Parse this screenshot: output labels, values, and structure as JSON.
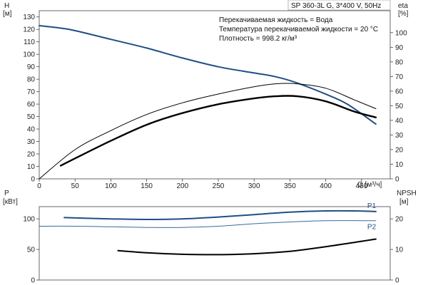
{
  "header": {
    "model": "SP 360-3L G, 3*400 V, 50Hz"
  },
  "notes": [
    "Перекачиваемая жидкость = Вода",
    "Температура перекачиваемой жидкости = 20 °C",
    "Плотность = 998.2 кг/м³"
  ],
  "colors": {
    "blue": "#1f4f86",
    "blue_light": "#3a6a9a",
    "black": "#000000",
    "axis": "#444444"
  },
  "chart_data": [
    {
      "type": "line",
      "name": "top-panel",
      "xlabel": "Q [м³/ч]",
      "ylabel_left": [
        "H",
        "[м]"
      ],
      "ylabel_right": [
        "eta",
        "[%]"
      ],
      "xlim": [
        0,
        490
      ],
      "ylim_left": [
        0,
        135
      ],
      "ylim_right": [
        0,
        115
      ],
      "x_ticks": [
        0,
        50,
        100,
        150,
        200,
        250,
        300,
        350,
        400,
        450
      ],
      "x_tick_labels": [
        "0",
        "50",
        "100",
        "150",
        "200",
        "250",
        "300",
        "350",
        "400",
        "450"
      ],
      "y_ticks_left": [
        0,
        10,
        20,
        30,
        40,
        50,
        60,
        70,
        80,
        90,
        100,
        110,
        120,
        130
      ],
      "y_tick_labels_left": [
        "0",
        "10",
        "20",
        "30",
        "40",
        "50",
        "60",
        "70",
        "80",
        "90",
        "100",
        "110",
        "120",
        "130"
      ],
      "y_ticks_right": [
        0,
        10,
        20,
        30,
        40,
        50,
        60,
        70,
        80,
        90,
        100
      ],
      "y_tick_labels_right": [
        "0",
        "10",
        "20",
        "30",
        "40",
        "50",
        "60",
        "70",
        "80",
        "90",
        "100"
      ],
      "series": [
        {
          "axis": "left",
          "color": "#1f4f86",
          "width": 2,
          "x": [
            0,
            30,
            50,
            100,
            150,
            200,
            250,
            300,
            330,
            360,
            400,
            430,
            470
          ],
          "y": [
            123,
            121,
            119,
            112,
            105,
            97,
            90,
            85,
            82,
            77,
            68,
            60,
            44
          ]
        },
        {
          "axis": "right",
          "color": "#000000",
          "width": 1,
          "x": [
            0,
            50,
            100,
            150,
            200,
            250,
            300,
            330,
            360,
            400,
            440,
            470
          ],
          "y": [
            0,
            20,
            33,
            44,
            52,
            58,
            63,
            65,
            65,
            62,
            54,
            48
          ]
        },
        {
          "axis": "right",
          "color": "#000000",
          "width": 2.4,
          "x": [
            30,
            50,
            100,
            150,
            200,
            250,
            300,
            330,
            360,
            400,
            440,
            470
          ],
          "y": [
            9,
            14,
            26,
            37,
            45,
            51,
            55,
            56.5,
            56.5,
            53,
            46,
            42
          ]
        }
      ]
    },
    {
      "type": "line",
      "name": "bottom-panel",
      "ylabel_left": [
        "P",
        "[кВт]"
      ],
      "ylabel_right": [
        "NPSH",
        "[м]"
      ],
      "xlim": [
        0,
        490
      ],
      "ylim_left": [
        0,
        120
      ],
      "ylim_right": [
        0,
        24
      ],
      "y_ticks_left": [
        0,
        50,
        100
      ],
      "y_tick_labels_left": [
        "0",
        "50",
        "100"
      ],
      "y_ticks_right": [
        0,
        10,
        20
      ],
      "y_tick_labels_right": [
        "0",
        "10",
        "20"
      ],
      "series": [
        {
          "name": "P1",
          "axis": "left",
          "color": "#1f4f86",
          "width": 2,
          "x": [
            35,
            100,
            150,
            200,
            250,
            300,
            350,
            400,
            440,
            470
          ],
          "y": [
            102,
            100,
            99,
            100,
            103,
            107,
            111,
            113,
            113,
            112
          ]
        },
        {
          "name": "P2",
          "axis": "left",
          "color": "#3a6a9a",
          "width": 1,
          "x": [
            0,
            50,
            100,
            150,
            200,
            250,
            300,
            350,
            400,
            450,
            470
          ],
          "y": [
            88,
            88,
            87,
            86,
            86,
            88,
            92,
            95,
            97,
            97,
            97
          ]
        },
        {
          "axis": "right",
          "color": "#000000",
          "width": 2,
          "x": [
            110,
            150,
            200,
            250,
            300,
            350,
            400,
            440,
            470
          ],
          "y": [
            9.6,
            8.9,
            8.4,
            8.3,
            8.6,
            9.4,
            10.9,
            12.3,
            13.4
          ]
        }
      ]
    }
  ]
}
